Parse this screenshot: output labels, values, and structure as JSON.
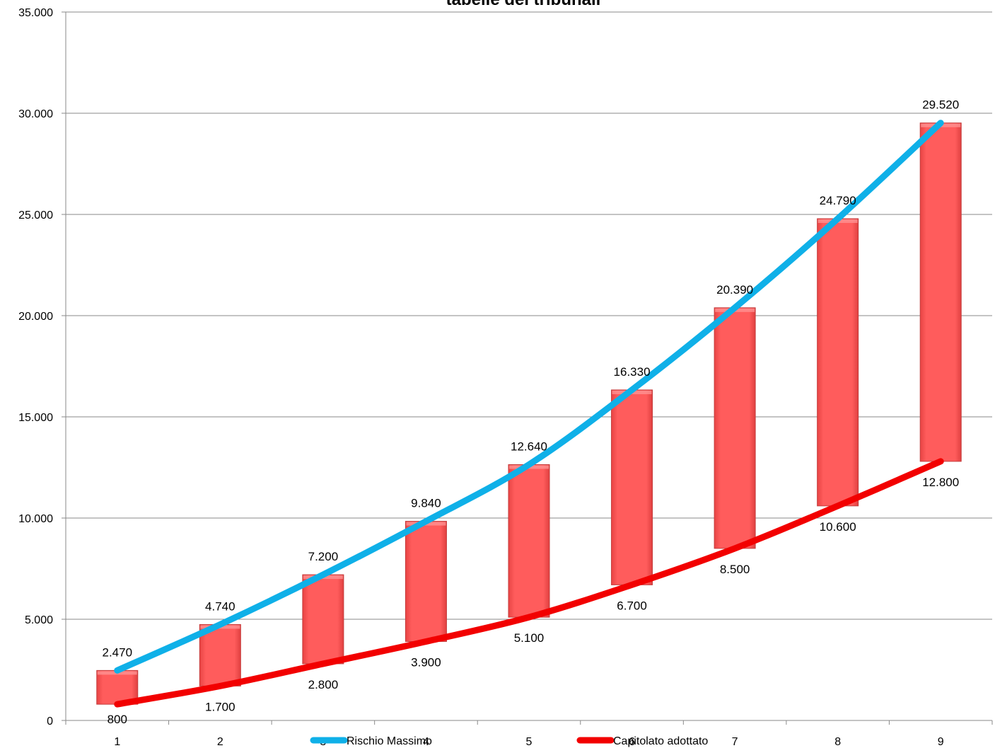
{
  "chart_data": {
    "type": "line",
    "title": "tabelle dei tribunali",
    "xlabel": "",
    "ylabel": "",
    "categories": [
      "1",
      "2",
      "3",
      "4",
      "5",
      "6",
      "7",
      "8",
      "9"
    ],
    "ylim": [
      0,
      35000
    ],
    "yticks": [
      0,
      5000,
      10000,
      15000,
      20000,
      25000,
      30000,
      35000
    ],
    "ytick_labels": [
      "0",
      "5.000",
      "10.000",
      "15.000",
      "20.000",
      "25.000",
      "30.000",
      "35.000"
    ],
    "grid": "horizontal",
    "legend_position": "bottom",
    "series": [
      {
        "name": "Rischio Massimo",
        "color": "#0fb0e8",
        "values": [
          2470,
          4740,
          7200,
          9840,
          12640,
          16330,
          20390,
          24790,
          29520
        ],
        "labels": [
          "2.470",
          "4.740",
          "7.200",
          "9.840",
          "12.640",
          "16.330",
          "20.390",
          "24.790",
          "29.520"
        ]
      },
      {
        "name": "Capitolato adottato",
        "color": "#f20000",
        "values": [
          800,
          1700,
          2800,
          3900,
          5100,
          6700,
          8500,
          10600,
          12800
        ],
        "labels": [
          "800",
          "1.700",
          "2.800",
          "3.900",
          "5.100",
          "6.700",
          "8.500",
          "10.600",
          "12.800"
        ]
      }
    ],
    "range_bars": {
      "color": "#ff5a5a",
      "low_series": "Capitolato adottato",
      "high_series": "Rischio Massimo"
    }
  }
}
